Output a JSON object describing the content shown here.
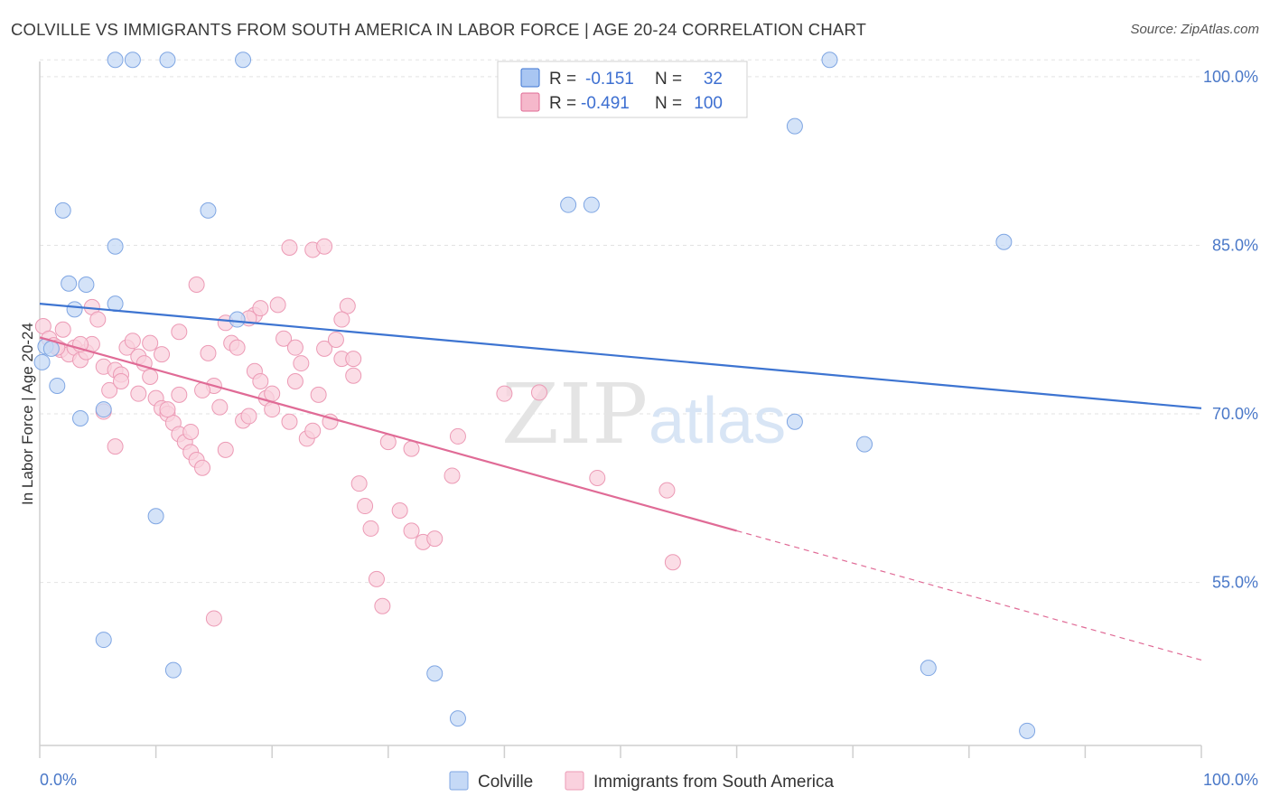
{
  "title": "COLVILLE VS IMMIGRANTS FROM SOUTH AMERICA IN LABOR FORCE | AGE 20-24 CORRELATION CHART",
  "source": "Source: ZipAtlas.com",
  "watermark": {
    "zip": "ZIP",
    "atlas": "atlas"
  },
  "legend": {
    "rows": [
      {
        "r_label": "R =",
        "r_value": "-0.151",
        "n_label": "N =",
        "n_value": "32",
        "color": "#a9c6f2"
      },
      {
        "r_label": "R =",
        "r_value": "-0.491",
        "n_label": "N =",
        "n_value": "100",
        "color": "#f5b8cb"
      }
    ]
  },
  "bottom_legend": [
    "Colville",
    "Immigrants from South America"
  ],
  "chart_data": {
    "type": "scatter",
    "title": "COLVILLE VS IMMIGRANTS FROM SOUTH AMERICA IN LABOR FORCE | AGE 20-24 CORRELATION CHART",
    "xlabel": "",
    "ylabel": "In Labor Force | Age 20-24",
    "xlim": [
      0,
      100
    ],
    "ylim": [
      40.5,
      102
    ],
    "x_tick_labels": [
      "0.0%",
      "100.0%"
    ],
    "y_ticks": [
      55,
      70,
      85,
      100
    ],
    "y_tick_labels": [
      "55.0%",
      "70.0%",
      "85.0%",
      "100.0%"
    ],
    "grid": true,
    "legend_position": "top-center",
    "colors": {
      "Colville": "#a9c6f2",
      "Immigrants from South America": "#f5b8cb",
      "colville_line": "#3d74d1",
      "immigrants_line": "#e06b96"
    },
    "series": [
      {
        "name": "Colville",
        "points": [
          [
            6.5,
            101.5
          ],
          [
            8,
            101.5
          ],
          [
            11,
            101.5
          ],
          [
            17.5,
            101.5
          ],
          [
            68,
            101.5
          ],
          [
            65,
            95.6
          ],
          [
            45.5,
            88.6
          ],
          [
            47.5,
            88.6
          ],
          [
            2,
            88.1
          ],
          [
            14.5,
            88.1
          ],
          [
            83,
            85.3
          ],
          [
            6.5,
            84.9
          ],
          [
            2.5,
            81.6
          ],
          [
            4,
            81.5
          ],
          [
            6.5,
            79.8
          ],
          [
            3,
            79.3
          ],
          [
            17,
            78.4
          ],
          [
            0.5,
            76
          ],
          [
            1,
            75.8
          ],
          [
            1.5,
            72.5
          ],
          [
            3.5,
            69.6
          ],
          [
            5.5,
            70.4
          ],
          [
            65,
            69.3
          ],
          [
            71,
            67.3
          ],
          [
            10,
            60.9
          ],
          [
            5.5,
            49.9
          ],
          [
            11.5,
            47.2
          ],
          [
            34,
            46.9
          ],
          [
            76.5,
            47.4
          ],
          [
            36,
            42.9
          ],
          [
            85,
            41.8
          ],
          [
            0.2,
            74.6
          ]
        ]
      },
      {
        "name": "Immigrants from South America",
        "points": [
          [
            0.3,
            77.8
          ],
          [
            0.8,
            76.7
          ],
          [
            1.2,
            76.1
          ],
          [
            1.8,
            75.7
          ],
          [
            2.5,
            75.3
          ],
          [
            3,
            75.9
          ],
          [
            3.5,
            74.8
          ],
          [
            4,
            75.5
          ],
          [
            4.5,
            76.2
          ],
          [
            4.5,
            79.5
          ],
          [
            5,
            78.4
          ],
          [
            5.5,
            74.2
          ],
          [
            6,
            72.1
          ],
          [
            6.5,
            73.9
          ],
          [
            7,
            73.5
          ],
          [
            7.5,
            75.9
          ],
          [
            8,
            76.5
          ],
          [
            8.5,
            75.1
          ],
          [
            9,
            74.5
          ],
          [
            9.5,
            73.3
          ],
          [
            10,
            71.4
          ],
          [
            10.5,
            70.5
          ],
          [
            11,
            70
          ],
          [
            11.5,
            69.2
          ],
          [
            12,
            68.2
          ],
          [
            12.5,
            67.5
          ],
          [
            13,
            66.6
          ],
          [
            13.5,
            65.9
          ],
          [
            14,
            65.2
          ],
          [
            14.5,
            75.4
          ],
          [
            15,
            72.5
          ],
          [
            15.5,
            70.6
          ],
          [
            16,
            78.1
          ],
          [
            16.5,
            76.3
          ],
          [
            17,
            75.9
          ],
          [
            17.5,
            69.4
          ],
          [
            18,
            69.8
          ],
          [
            18.5,
            73.8
          ],
          [
            19,
            72.9
          ],
          [
            19.5,
            71.4
          ],
          [
            20,
            70.4
          ],
          [
            20.5,
            79.7
          ],
          [
            21,
            76.7
          ],
          [
            21.5,
            69.3
          ],
          [
            22,
            72.9
          ],
          [
            22.5,
            74.5
          ],
          [
            23,
            67.8
          ],
          [
            23.5,
            68.5
          ],
          [
            24,
            71.7
          ],
          [
            24.5,
            75.8
          ],
          [
            25,
            69.3
          ],
          [
            25.5,
            76.6
          ],
          [
            26,
            74.9
          ],
          [
            26.5,
            79.6
          ],
          [
            27,
            74.9
          ],
          [
            27.5,
            63.8
          ],
          [
            28,
            61.8
          ],
          [
            28.5,
            59.8
          ],
          [
            29,
            55.3
          ],
          [
            30,
            67.5
          ],
          [
            31,
            61.4
          ],
          [
            32,
            59.6
          ],
          [
            33,
            58.6
          ],
          [
            34,
            58.9
          ],
          [
            35.5,
            64.5
          ],
          [
            36,
            68
          ],
          [
            40,
            71.8
          ],
          [
            43,
            71.9
          ],
          [
            48,
            64.3
          ],
          [
            54,
            63.2
          ],
          [
            54.5,
            56.8
          ],
          [
            21.5,
            84.8
          ],
          [
            23.5,
            84.6
          ],
          [
            24.5,
            84.9
          ],
          [
            12,
            77.3
          ],
          [
            7,
            72.9
          ],
          [
            8.5,
            71.8
          ],
          [
            15,
            51.8
          ],
          [
            29.5,
            52.9
          ],
          [
            32,
            66.9
          ],
          [
            11,
            70.4
          ],
          [
            2,
            77.5
          ],
          [
            3.5,
            76.2
          ],
          [
            1.5,
            75.9
          ],
          [
            13.5,
            81.5
          ],
          [
            9.5,
            76.3
          ],
          [
            27,
            73.4
          ],
          [
            18.5,
            78.8
          ],
          [
            10.5,
            75.3
          ],
          [
            18,
            78.5
          ],
          [
            19,
            79.4
          ],
          [
            26,
            78.4
          ],
          [
            5.5,
            70.2
          ],
          [
            14,
            72.1
          ],
          [
            20,
            71.8
          ],
          [
            13,
            68.4
          ],
          [
            22,
            75.9
          ],
          [
            16,
            66.8
          ],
          [
            12,
            71.7
          ],
          [
            6.5,
            67.1
          ]
        ]
      }
    ],
    "trend_lines": [
      {
        "series": "Colville",
        "x": [
          0,
          100
        ],
        "y": [
          79.8,
          70.5
        ]
      },
      {
        "series": "Immigrants from South America",
        "x": [
          0,
          60
        ],
        "y": [
          76.8,
          59.6
        ],
        "dashed_extension": {
          "x": [
            60,
            100
          ],
          "y": [
            59.6,
            48.1
          ]
        }
      }
    ]
  }
}
